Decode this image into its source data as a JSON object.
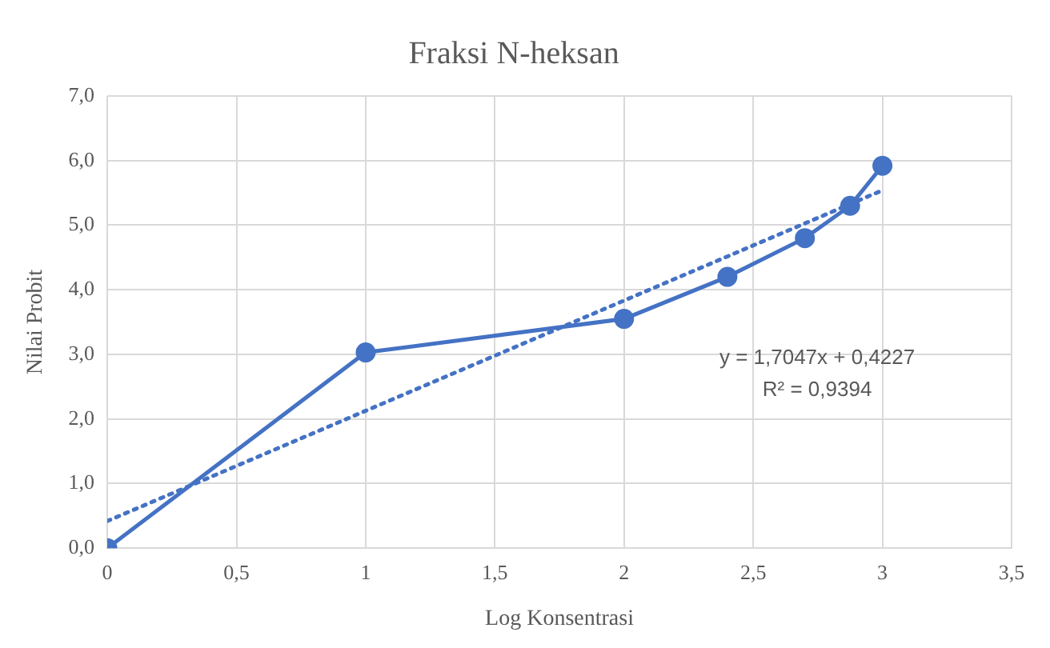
{
  "chart_data": {
    "type": "line",
    "title": "Fraksi N-heksan",
    "xlabel": "Log Konsentrasi",
    "ylabel": "Nilai Probit",
    "series": [
      {
        "color": "#4472c4",
        "x": [
          0,
          1,
          2,
          2.4,
          2.7,
          2.875,
          3
        ],
        "values": [
          0,
          3.03,
          3.55,
          4.2,
          4.8,
          5.3,
          5.92
        ],
        "marker": "circle",
        "line_style": "solid"
      },
      {
        "color": "#4472c4",
        "x": [
          0,
          3
        ],
        "values": [
          0.42,
          5.54
        ],
        "marker": "none",
        "line_style": "dotted"
      }
    ],
    "xlim": [
      0,
      3.5
    ],
    "xticks": [
      0,
      {
        "value": 0.5,
        "label": "0,5"
      },
      1,
      {
        "value": 1.5,
        "label": "1,5"
      },
      2,
      {
        "value": 2.5,
        "label": "2,5"
      },
      3,
      {
        "value": 3.5,
        "label": "3,5"
      }
    ],
    "ylim": [
      0,
      7
    ],
    "yticks": [
      {
        "value": 0,
        "label": "0,0"
      },
      {
        "value": 1,
        "label": "1,0"
      },
      {
        "value": 2,
        "label": "2,0"
      },
      {
        "value": 3,
        "label": "3,0"
      },
      {
        "value": 4,
        "label": "4,0"
      },
      {
        "value": 5,
        "label": "5,0"
      },
      {
        "value": 6,
        "label": "6,0"
      },
      {
        "value": 7,
        "label": "7,0"
      }
    ],
    "grid": true,
    "legend": false,
    "annotations": [
      "y = 1,7047x + 0,4227",
      "R² = 0,9394"
    ]
  }
}
